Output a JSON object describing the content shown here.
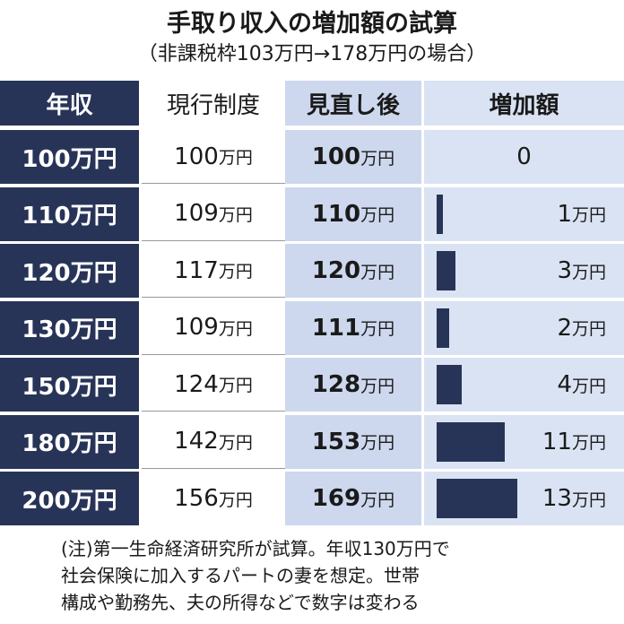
{
  "title": "手取り収入の増加額の試算",
  "subtitle": "（非課税枠103万円→178万円の場合）",
  "table": {
    "headers": [
      "年収",
      "現行制度",
      "見直し後",
      "増加額"
    ],
    "unit": "万円",
    "rows": [
      {
        "income": "100万円",
        "current": 100,
        "revised": 100,
        "increase": 0
      },
      {
        "income": "110万円",
        "current": 109,
        "revised": 110,
        "increase": 1
      },
      {
        "income": "120万円",
        "current": 117,
        "revised": 120,
        "increase": 3
      },
      {
        "income": "130万円",
        "current": 109,
        "revised": 111,
        "increase": 2
      },
      {
        "income": "150万円",
        "current": 124,
        "revised": 128,
        "increase": 4
      },
      {
        "income": "180万円",
        "current": 142,
        "revised": 153,
        "increase": 11
      },
      {
        "income": "200万円",
        "current": 156,
        "revised": 169,
        "increase": 13
      }
    ]
  },
  "note": [
    "(注)第一生命経済研究所が試算。年収130万円で",
    "社会保険に加入するパートの妻を想定。世帯",
    "構成や勤務先、夫の所得などで数字は変わる"
  ]
}
